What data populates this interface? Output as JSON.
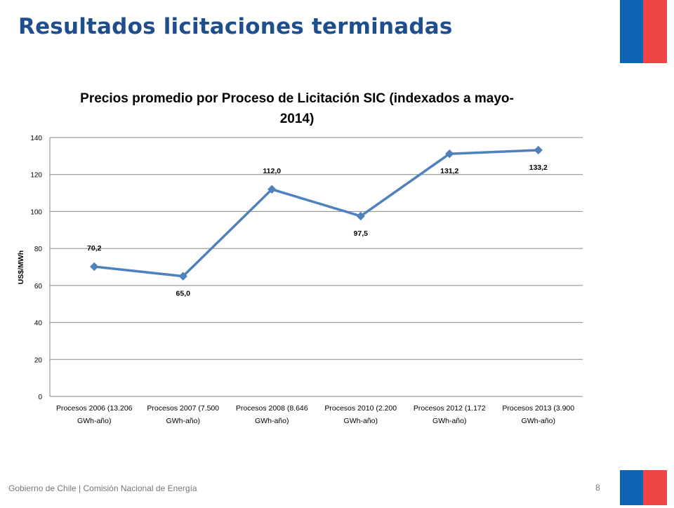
{
  "slide": {
    "title": "Resultados licitaciones terminadas",
    "footer": "Gobierno de Chile | Comisión Nacional de Energía",
    "page_number": "8"
  },
  "colors": {
    "title": "#1f4e8c",
    "series": "#4f81bd",
    "flag_blue": "#0f64b3",
    "flag_red": "#ef4444"
  },
  "chart_data": {
    "type": "line",
    "title": "Precios promedio por Proceso de Licitación SIC (indexados a mayo-2014)",
    "title_lines": [
      "Precios promedio por Proceso de Licitación SIC (indexados a mayo-",
      "2014)"
    ],
    "ylabel": "US$/MWh",
    "xlabel": "",
    "ylim": [
      0,
      140
    ],
    "yticks": [
      0,
      20,
      40,
      60,
      80,
      100,
      120,
      140
    ],
    "grid": true,
    "legend": "none",
    "categories": [
      [
        "Procesos 2006 (13.206",
        "GWh-año)"
      ],
      [
        "Procesos 2007 (7.500",
        "GWh-año)"
      ],
      [
        "Procesos 2008 (8.646",
        "GWh-año)"
      ],
      [
        "Procesos 2010 (2.200",
        "GWh-año)"
      ],
      [
        "Procesos 2012 (1.172",
        "GWh-año)"
      ],
      [
        "Procesos 2013 (3.900",
        "GWh-año)"
      ]
    ],
    "series": [
      {
        "values": [
          70.2,
          65.0,
          112.0,
          97.5,
          131.2,
          133.2
        ],
        "labels": [
          "70,2",
          "65,0",
          "112,0",
          "97,5",
          "131,2",
          "133,2"
        ],
        "label_positions": [
          "above",
          "below",
          "above",
          "below",
          "below",
          "below"
        ]
      }
    ]
  }
}
